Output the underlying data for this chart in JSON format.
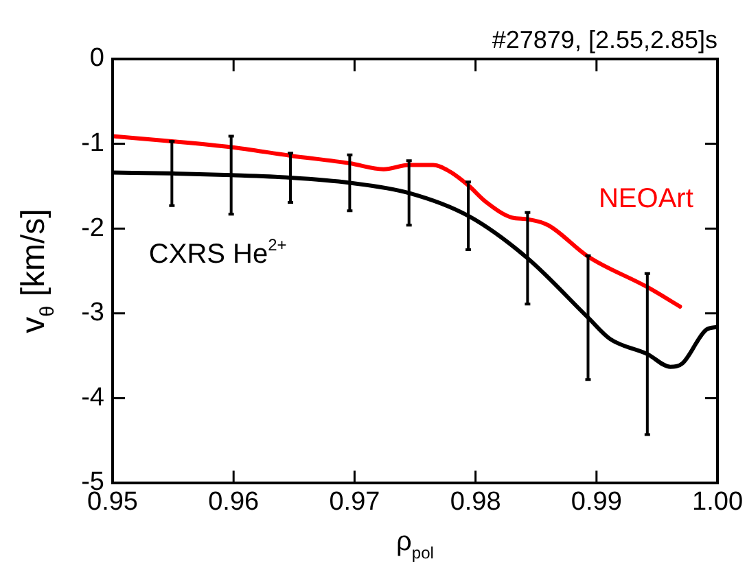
{
  "chart_data": {
    "type": "line",
    "title": "#27879, [2.55,2.85]s",
    "xlabel": "ρ$_{pol}$",
    "ylabel": "v$_{θ}$ [km/s]",
    "xlim": [
      0.95,
      1.0
    ],
    "xticks": [
      {
        "value": 0.95,
        "label": "0.95"
      },
      {
        "value": 0.96,
        "label": "0.96"
      },
      {
        "value": 0.97,
        "label": "0.97"
      },
      {
        "value": 0.98,
        "label": "0.98"
      },
      {
        "value": 0.99,
        "label": "0.99"
      },
      {
        "value": 1.0,
        "label": "1.00"
      }
    ],
    "ylim": [
      -5,
      0
    ],
    "yticks": [
      -5,
      -4,
      -3,
      -2,
      -1,
      0
    ],
    "grid": false,
    "legend": false,
    "marker": "none",
    "line_style": "solid",
    "series": [
      {
        "name": "CXRS He$^{2+}$",
        "color": "#000000",
        "x": [
          0.95,
          0.9549,
          0.9598,
          0.9647,
          0.9696,
          0.9745,
          0.9794,
          0.9843,
          0.9893,
          0.9911,
          0.9942,
          0.9961,
          0.9971,
          0.9991,
          1.0
        ],
        "values": [
          -1.34,
          -1.35,
          -1.37,
          -1.4,
          -1.46,
          -1.58,
          -1.85,
          -2.35,
          -3.05,
          -3.3,
          -3.48,
          -3.63,
          -3.59,
          -3.19,
          -3.16
        ],
        "errors": [
          null,
          0.38,
          0.46,
          0.29,
          0.33,
          0.38,
          0.4,
          0.54,
          0.73,
          null,
          0.95,
          null,
          null,
          null,
          null
        ]
      },
      {
        "name": "NEOArt",
        "color": "#ff0000",
        "x": [
          0.95,
          0.9549,
          0.9598,
          0.9647,
          0.9696,
          0.9724,
          0.9745,
          0.9765,
          0.9779,
          0.9794,
          0.9809,
          0.983,
          0.9843,
          0.986,
          0.9893,
          0.9942,
          0.9969
        ],
        "values": [
          -0.91,
          -0.97,
          -1.04,
          -1.14,
          -1.23,
          -1.3,
          -1.25,
          -1.25,
          -1.33,
          -1.49,
          -1.69,
          -1.87,
          -1.89,
          -1.96,
          -2.33,
          -2.69,
          -2.92
        ]
      }
    ]
  }
}
